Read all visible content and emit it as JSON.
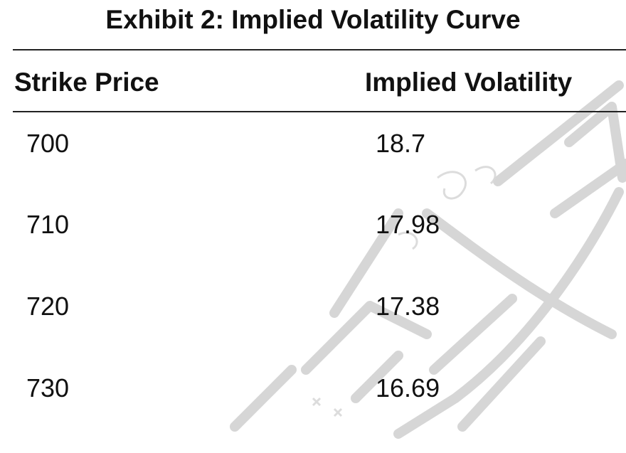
{
  "exhibit": {
    "title": "Exhibit 2: Implied Volatility Curve",
    "columns": {
      "strike": "Strike Price",
      "iv": "Implied Volatility"
    },
    "rows": [
      {
        "strike": "700",
        "iv": "18.7"
      },
      {
        "strike": "710",
        "iv": "17.98"
      },
      {
        "strike": "720",
        "iv": "17.38"
      },
      {
        "strike": "730",
        "iv": "16.69"
      }
    ]
  },
  "watermark": {
    "color": "#c8c8c8",
    "style": "calligraphic-stamp"
  }
}
